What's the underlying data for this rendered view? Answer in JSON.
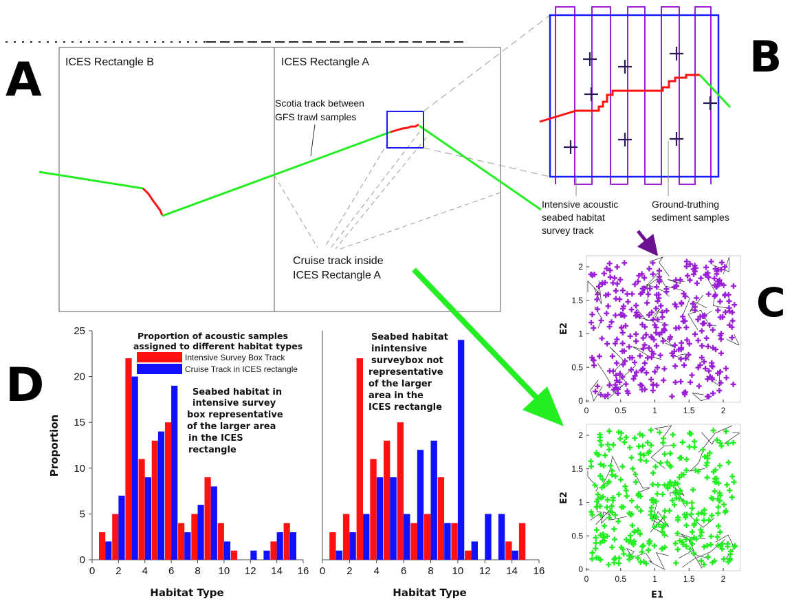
{
  "panel_letters": {
    "a": "A",
    "b": "B",
    "c": "C",
    "d": "D"
  },
  "panel_a": {
    "rect_b_label": "ICES Rectangle B",
    "rect_a_label": "ICES Rectangle A",
    "scotia_label": [
      "Scotia track between",
      "GFS trawl samples"
    ],
    "cruise_label": [
      "Cruise track inside",
      "ICES Rectangle A"
    ]
  },
  "panel_b": {
    "intensive_label": [
      "Intensive acoustic",
      "seabed habitat",
      "survey track"
    ],
    "ground_label": [
      "Ground-truthing",
      "sediment samples"
    ]
  },
  "panel_c": {
    "xlabel": "E1",
    "ylabel": "E2",
    "x_ticks": [
      "0",
      "0.5",
      "1",
      "1.5",
      "2"
    ],
    "y_ticks": [
      "0",
      "0.5",
      "1",
      "1.5",
      "2"
    ],
    "point_colors": {
      "top": "#9a1fd6",
      "bottom": "#22ee22"
    }
  },
  "colors": {
    "intensive": "#ff1111",
    "cruise": "#1111ff",
    "track_green": "#22ee22",
    "box_blue": "#1a1aff",
    "survey_purple": "#9a1fd6",
    "arrow_purple": "#6a1090",
    "marker_dark": "#2a1a5a"
  },
  "chart_data": [
    {
      "type": "bar",
      "xlabel": "Habitat Type",
      "ylabel": "Proportion",
      "x_ticks": [
        0,
        2,
        4,
        6,
        8,
        10,
        12,
        14,
        16
      ],
      "y_ticks": [
        0,
        5,
        10,
        15,
        20,
        25
      ],
      "xlim": [
        0,
        16
      ],
      "ylim": [
        0,
        25
      ],
      "legend_title": [
        "Proportion of acoustic samples",
        "assigned to different habitat types"
      ],
      "annotation": [
        "Seabed habitat in",
        "intensive survey",
        "box representative",
        "of  the larger area",
        "in the ICES",
        "rectangle"
      ],
      "categories": [
        1,
        2,
        3,
        4,
        5,
        6,
        7,
        8,
        9,
        10,
        11,
        12,
        13,
        14,
        15
      ],
      "series": [
        {
          "name": "Intensive Survey Box Track",
          "values": [
            3,
            5,
            22,
            11,
            13,
            15,
            4,
            5,
            9,
            4,
            1,
            0,
            0,
            2,
            4
          ]
        },
        {
          "name": "Cruise Track in ICES rectangle",
          "values": [
            2,
            7,
            20,
            9,
            14,
            19,
            3,
            6,
            8,
            2,
            0,
            1,
            1,
            3,
            3
          ]
        }
      ]
    },
    {
      "type": "bar",
      "xlabel": "Habitat Type",
      "x_ticks": [
        0,
        2,
        4,
        6,
        8,
        10,
        12,
        14,
        16
      ],
      "xlim": [
        0,
        16
      ],
      "ylim": [
        0,
        25
      ],
      "annotation": [
        "Seabed habitat",
        "inintensive",
        "surveybox not",
        "representative",
        "of  the larger",
        "area in the",
        "ICES rectangle"
      ],
      "categories": [
        1,
        2,
        3,
        4,
        5,
        6,
        7,
        8,
        9,
        10,
        11,
        12,
        13,
        14,
        15
      ],
      "series": [
        {
          "name": "Intensive Survey Box Track",
          "values": [
            3,
            5,
            22,
            11,
            13,
            15,
            4,
            5,
            9,
            4,
            1,
            0,
            0,
            2,
            4
          ]
        },
        {
          "name": "Cruise Track in ICES rectangle",
          "values": [
            1,
            3,
            5,
            9,
            9,
            5,
            12,
            13,
            4,
            24,
            2,
            5,
            5,
            1,
            0
          ]
        }
      ]
    }
  ]
}
